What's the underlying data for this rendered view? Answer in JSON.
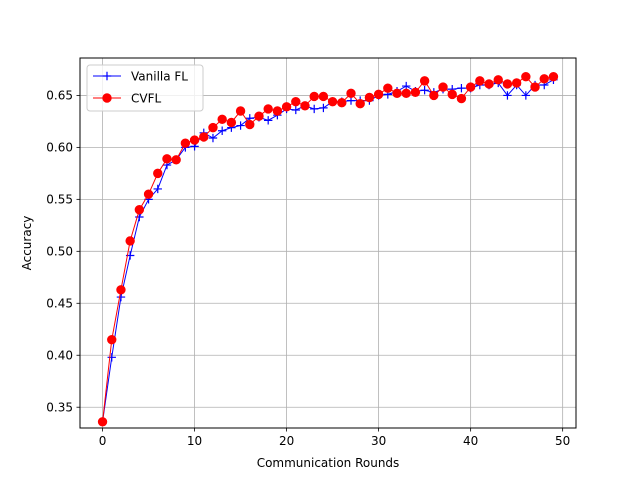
{
  "chart_data": {
    "type": "line",
    "title": "",
    "xlabel": "Communication Rounds",
    "ylabel": "Accuracy",
    "xlim": [
      -2.45,
      51.45
    ],
    "ylim": [
      0.33,
      0.686
    ],
    "xticks": [
      0,
      10,
      20,
      30,
      40,
      50
    ],
    "yticks": [
      0.35,
      0.4,
      0.45,
      0.5,
      0.55,
      0.6,
      0.65
    ],
    "ytick_labels": [
      "0.35",
      "0.40",
      "0.45",
      "0.50",
      "0.55",
      "0.60",
      "0.65"
    ],
    "grid": true,
    "legend_position": "upper-left",
    "x": [
      0,
      1,
      2,
      3,
      4,
      5,
      6,
      7,
      8,
      9,
      10,
      11,
      12,
      13,
      14,
      15,
      16,
      17,
      18,
      19,
      20,
      21,
      22,
      23,
      24,
      25,
      26,
      27,
      28,
      29,
      30,
      31,
      32,
      33,
      34,
      35,
      36,
      37,
      38,
      39,
      40,
      41,
      42,
      43,
      44,
      45,
      46,
      47,
      48,
      49
    ],
    "series": [
      {
        "name": "Vanilla FL",
        "color": "#0000ff",
        "marker": "plus",
        "values": [
          0.336,
          0.398,
          0.456,
          0.496,
          0.533,
          0.55,
          0.56,
          0.583,
          0.588,
          0.6,
          0.601,
          0.614,
          0.609,
          0.616,
          0.619,
          0.621,
          0.628,
          0.629,
          0.626,
          0.631,
          0.637,
          0.636,
          0.64,
          0.637,
          0.638,
          0.644,
          0.644,
          0.645,
          0.645,
          0.645,
          0.65,
          0.651,
          0.654,
          0.659,
          0.654,
          0.655,
          0.653,
          0.656,
          0.656,
          0.657,
          0.657,
          0.66,
          0.66,
          0.662,
          0.65,
          0.66,
          0.65,
          0.66,
          0.66,
          0.665
        ]
      },
      {
        "name": "CVFL",
        "color": "#ff0000",
        "marker": "circle",
        "values": [
          0.336,
          0.415,
          0.463,
          0.51,
          0.54,
          0.555,
          0.575,
          0.589,
          0.588,
          0.604,
          0.607,
          0.61,
          0.619,
          0.627,
          0.624,
          0.635,
          0.622,
          0.63,
          0.637,
          0.635,
          0.639,
          0.644,
          0.64,
          0.649,
          0.649,
          0.644,
          0.643,
          0.652,
          0.642,
          0.648,
          0.651,
          0.657,
          0.652,
          0.652,
          0.653,
          0.664,
          0.65,
          0.658,
          0.651,
          0.647,
          0.658,
          0.664,
          0.661,
          0.665,
          0.661,
          0.662,
          0.668,
          0.658,
          0.666,
          0.668
        ]
      }
    ]
  }
}
